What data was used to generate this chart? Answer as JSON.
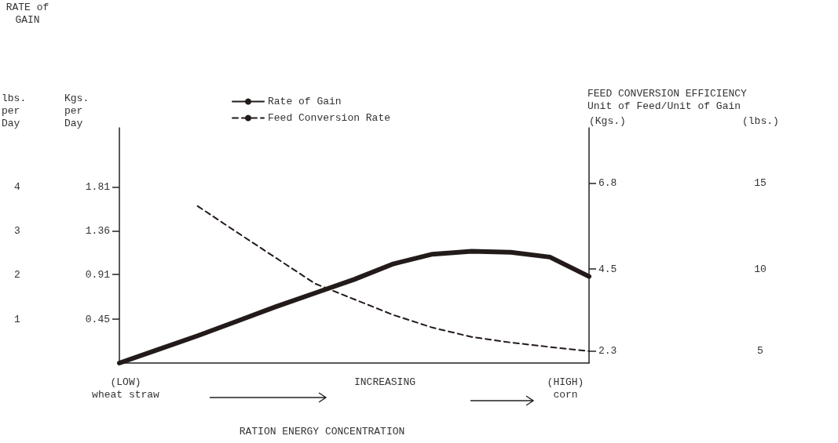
{
  "chart_data": {
    "type": "line",
    "categories": [
      null,
      null,
      null,
      null,
      null,
      null,
      null,
      null,
      null,
      null,
      null,
      null,
      null
    ],
    "series": [
      {
        "name": "Rate of Gain",
        "color": "#231a1a",
        "axis": "y",
        "line_style": "solid",
        "values": [
          0,
          0.14,
          0.28,
          0.43,
          0.58,
          0.72,
          0.86,
          1.02,
          1.12,
          1.15,
          1.14,
          1.09,
          0.89
        ]
      },
      {
        "name": "Feed Conversion Rate",
        "color": "#231a1a",
        "axis": "y2",
        "line_style": "dashed",
        "values": [
          null,
          null,
          6.19,
          5.49,
          4.8,
          4.11,
          3.69,
          3.27,
          2.93,
          2.68,
          2.53,
          2.41,
          2.3
        ]
      }
    ],
    "ylabel": "Kgs.\nper\nDay",
    "ylim": [
      0,
      2.42
    ],
    "yticks": [
      0.45,
      0.91,
      1.36,
      1.81
    ],
    "y2label": "(Kgs.)",
    "y2lim": [
      1.98,
      8.29
    ],
    "y2ticks": [
      2.3,
      4.5,
      6.8
    ],
    "annotations": [
      "RATE of\nGAIN",
      "FEED CONVERSION EFFICIENCY\nUnit of Feed/Unit of Gain",
      "(LOW)\nwheat straw",
      "INCREASING",
      "(HIGH)\ncorn",
      "lbs.\nper\nDay",
      "4",
      "3",
      "2",
      "1",
      "(lbs.)",
      "15",
      "10",
      "5",
      "RATION ENERGY CONCENTRATION"
    ],
    "legend": "top",
    "marker": "none",
    "grid": false
  }
}
